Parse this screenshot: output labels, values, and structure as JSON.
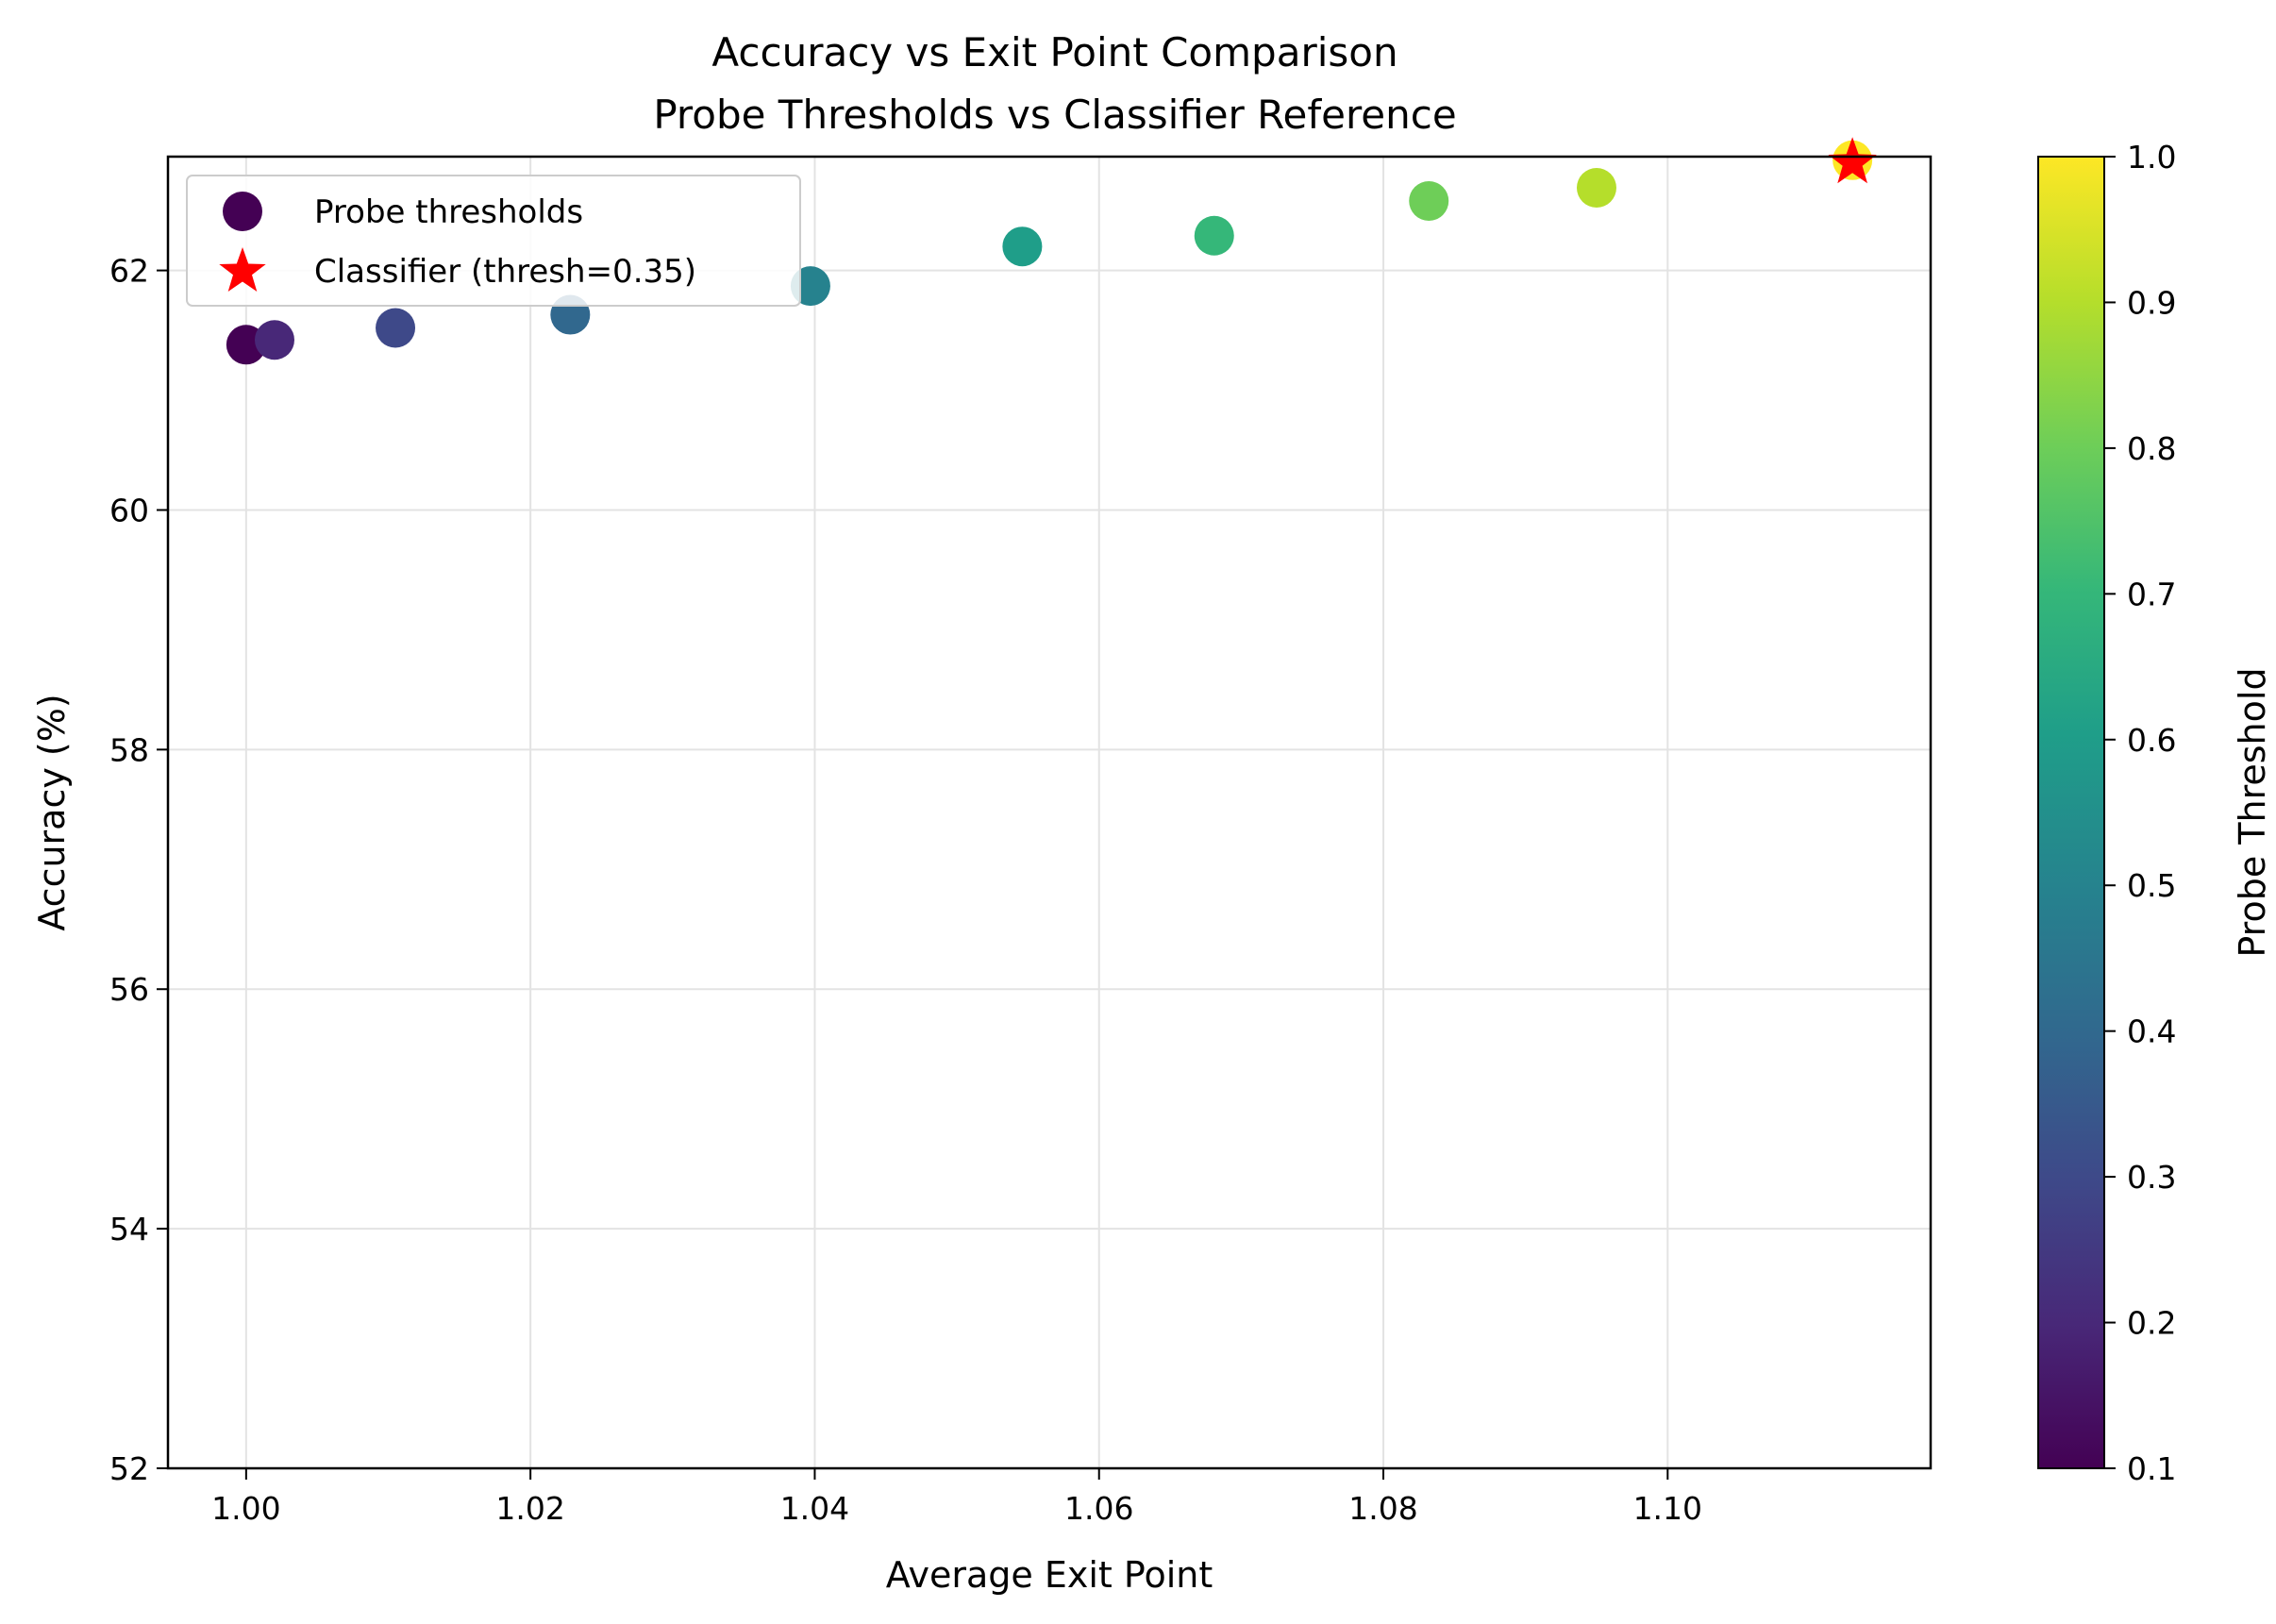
{
  "chart_data": {
    "type": "scatter",
    "title": "Accuracy vs Exit Point Comparison",
    "subtitle": "Probe Thresholds vs Classifier Reference",
    "xlabel": "Average Exit Point",
    "ylabel": "Accuracy (%)",
    "xlim": [
      0.9945,
      1.1185
    ],
    "ylim": [
      52,
      62.95
    ],
    "xticks": [
      1.0,
      1.02,
      1.04,
      1.06,
      1.08,
      1.1
    ],
    "xtick_labels": [
      "1.00",
      "1.02",
      "1.04",
      "1.06",
      "1.08",
      "1.10"
    ],
    "yticks": [
      52,
      54,
      56,
      58,
      60,
      62
    ],
    "ytick_labels": [
      "52",
      "54",
      "56",
      "58",
      "60",
      "62"
    ],
    "grid": true,
    "legend_position": "top-left",
    "series": [
      {
        "name": "Probe thresholds",
        "marker": "circle",
        "colormap": "viridis",
        "points": [
          {
            "x": 1.0,
            "y": 61.38,
            "threshold": 0.1
          },
          {
            "x": 1.002,
            "y": 61.42,
            "threshold": 0.2
          },
          {
            "x": 1.0105,
            "y": 61.52,
            "threshold": 0.3
          },
          {
            "x": 1.0228,
            "y": 61.63,
            "threshold": 0.4
          },
          {
            "x": 1.0397,
            "y": 61.87,
            "threshold": 0.5
          },
          {
            "x": 1.0546,
            "y": 62.2,
            "threshold": 0.6
          },
          {
            "x": 1.0681,
            "y": 62.29,
            "threshold": 0.7
          },
          {
            "x": 1.0832,
            "y": 62.58,
            "threshold": 0.8
          },
          {
            "x": 1.095,
            "y": 62.69,
            "threshold": 0.9
          },
          {
            "x": 1.113,
            "y": 62.92,
            "threshold": 1.0
          }
        ]
      },
      {
        "name": "Classifier (thresh=0.35)",
        "marker": "star",
        "color": "#ff0000",
        "points": [
          {
            "x": 1.113,
            "y": 62.9
          }
        ]
      }
    ],
    "colorbar": {
      "label": "Probe Threshold",
      "range": [
        0.1,
        1.0
      ],
      "ticks": [
        0.1,
        0.2,
        0.3,
        0.4,
        0.5,
        0.6,
        0.7,
        0.8,
        0.9,
        1.0
      ],
      "tick_labels": [
        "0.1",
        "0.2",
        "0.3",
        "0.4",
        "0.5",
        "0.6",
        "0.7",
        "0.8",
        "0.9",
        "1.0"
      ]
    },
    "legend_colors": {
      "probe_marker": "#440154",
      "classifier_marker": "#ff0000"
    }
  }
}
